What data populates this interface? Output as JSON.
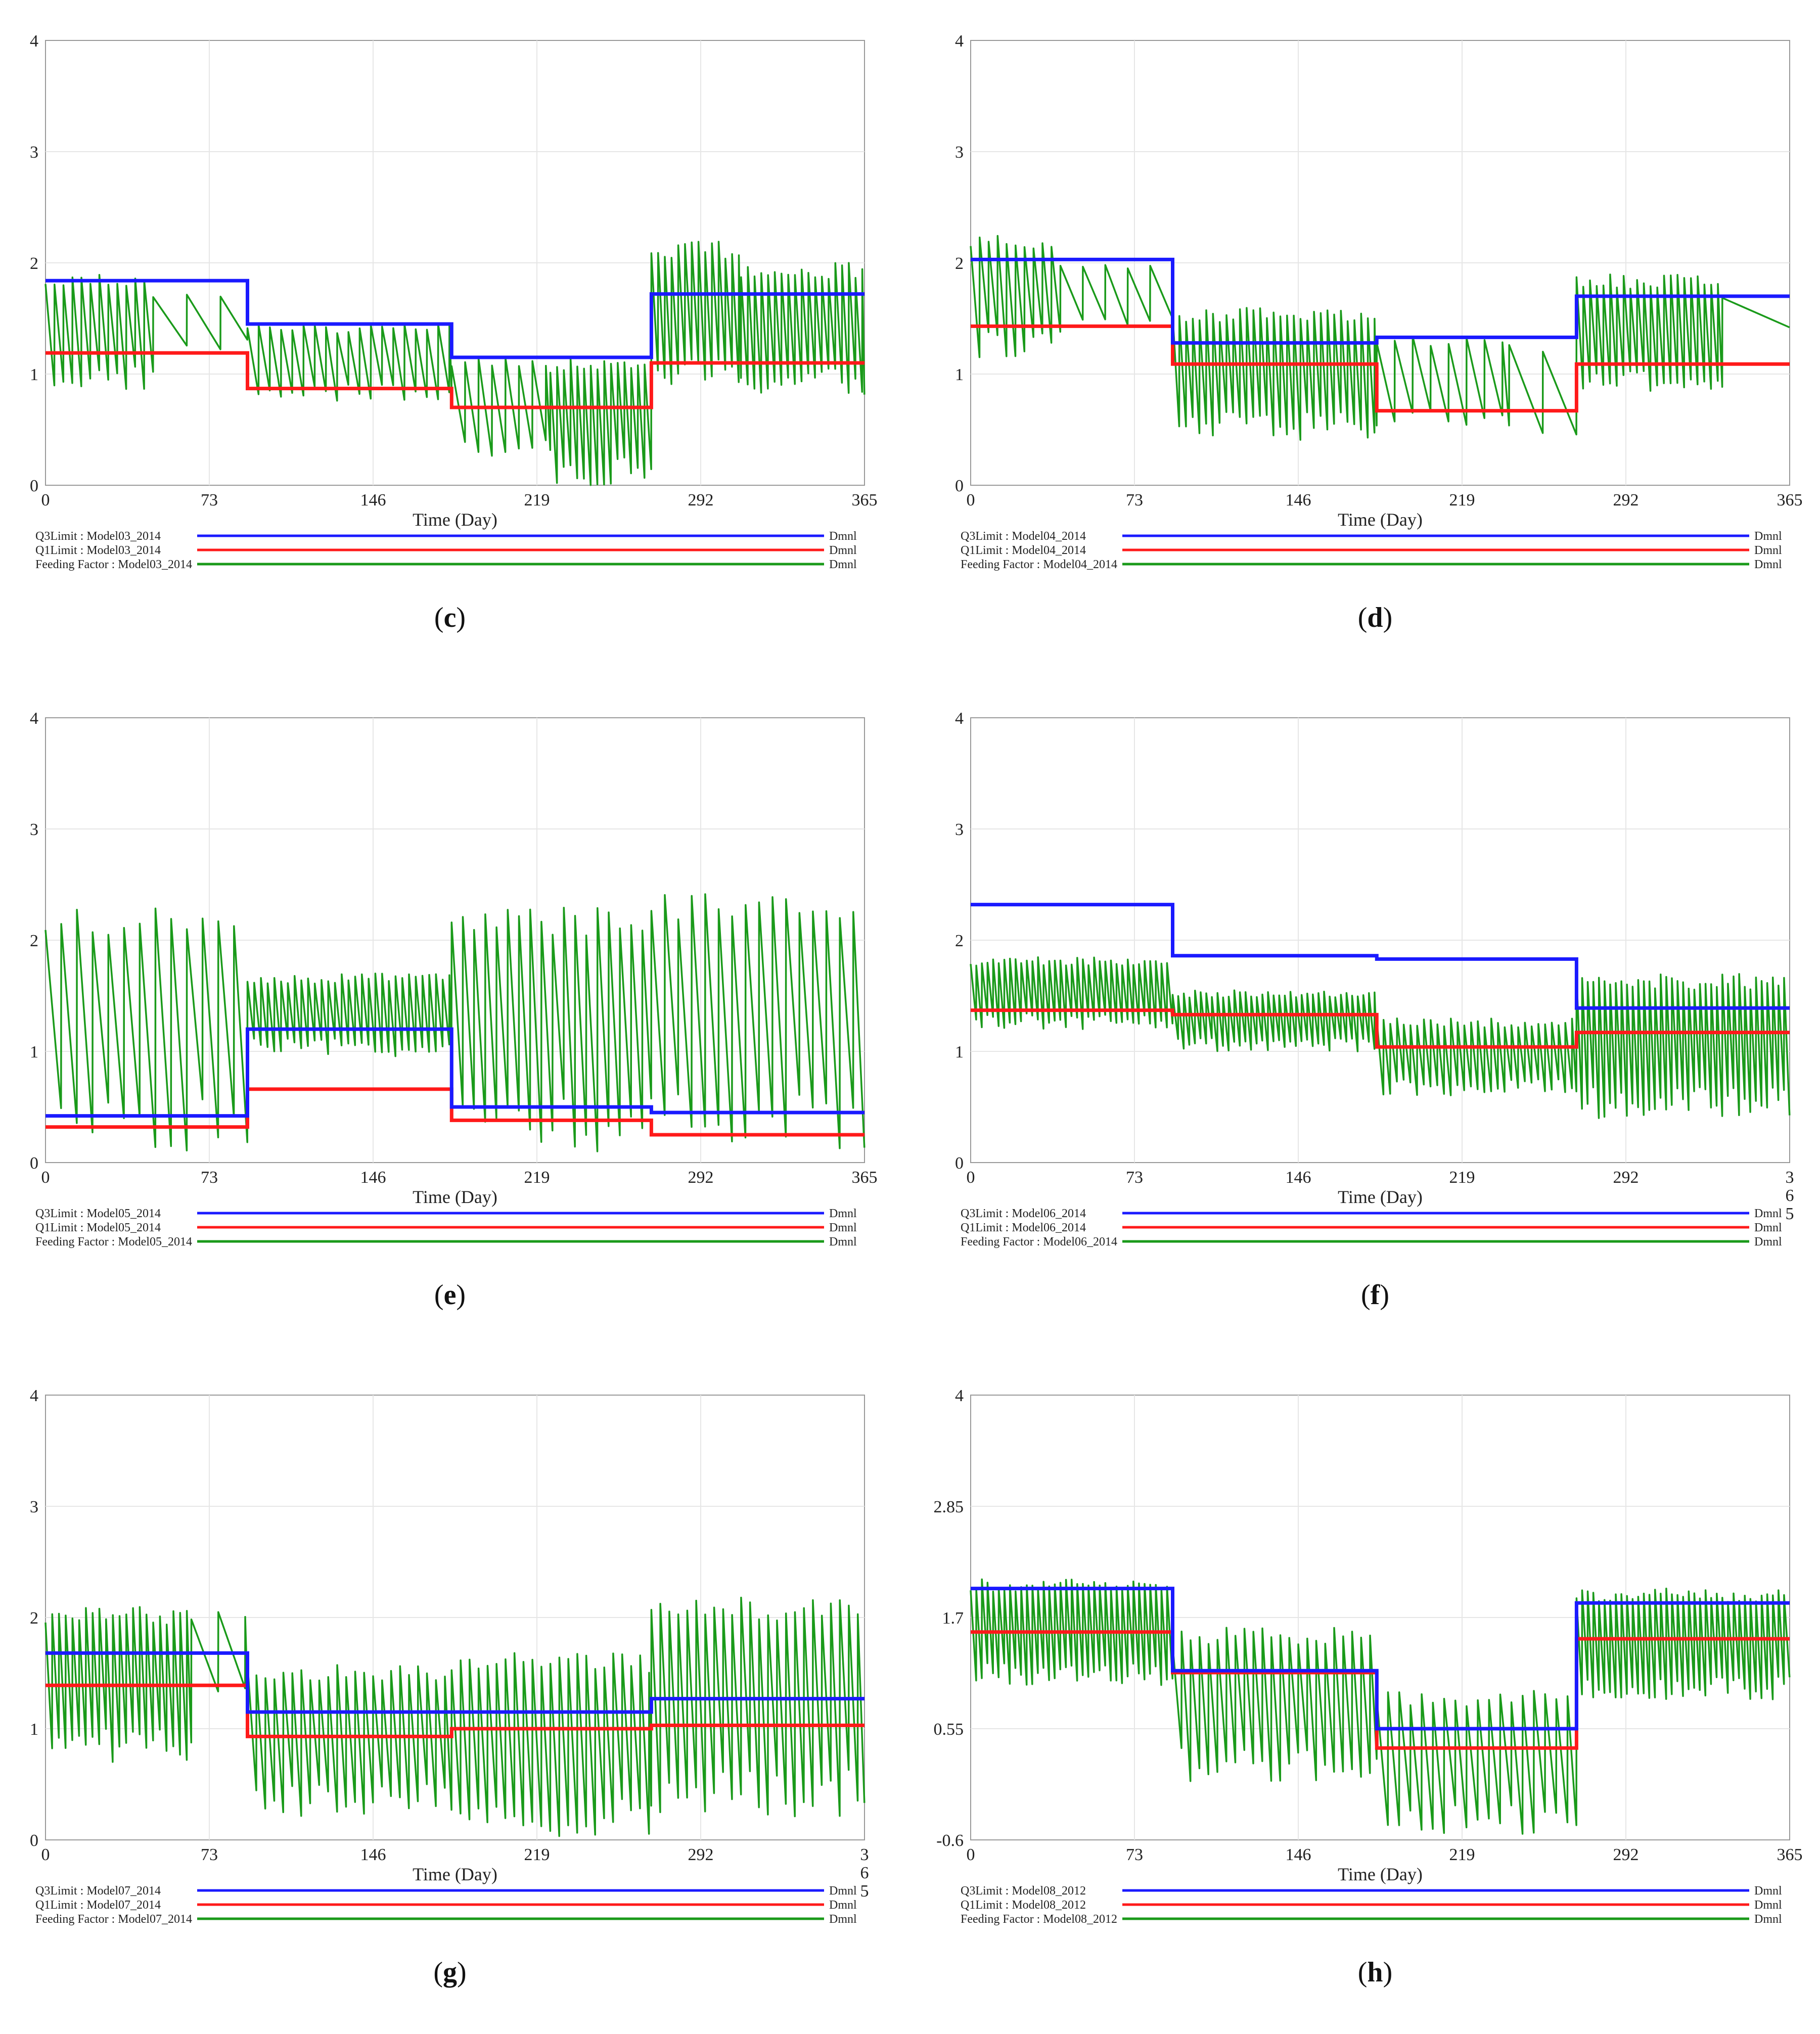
{
  "chart_data": [
    {
      "type": "line",
      "panel": "c",
      "caption_letter": "c",
      "xlabel": "Time (Day)",
      "xlim": [
        0,
        365
      ],
      "ylim": [
        0,
        4
      ],
      "x_ticks": [
        "0",
        "73",
        "146",
        "219",
        "292",
        "365"
      ],
      "y_ticks": [
        {
          "v": 0,
          "label": "0"
        },
        {
          "v": 1,
          "label": "1"
        },
        {
          "v": 2,
          "label": "2"
        },
        {
          "v": 3,
          "label": "3"
        },
        {
          "v": 4,
          "label": "4"
        }
      ],
      "legend": [
        {
          "label": "Q3Limit : Model03_2014",
          "unit": "Dmnl",
          "color": "#1a1aff"
        },
        {
          "label": "Q1Limit : Model03_2014",
          "unit": "Dmnl",
          "color": "#ff1a1a"
        },
        {
          "label": "Feeding Factor : Model03_2014",
          "unit": "Dmnl",
          "color": "#1a9a1a"
        }
      ],
      "series": [
        {
          "name": "Q3Limit",
          "type": "step",
          "breaks": [
            0,
            90,
            181,
            270,
            365
          ],
          "values": [
            1.84,
            1.45,
            1.15,
            1.72
          ]
        },
        {
          "name": "Q1Limit",
          "type": "step",
          "breaks": [
            0,
            90,
            181,
            270,
            365
          ],
          "values": [
            1.19,
            0.87,
            0.7,
            1.1
          ]
        },
        {
          "name": "Feeding Factor",
          "type": "oscillation",
          "segments": [
            {
              "start": 0,
              "end": 48,
              "period": 4,
              "min": 0.85,
              "max": 1.9
            },
            {
              "start": 48,
              "end": 90,
              "period": 15,
              "min": 1.2,
              "max": 1.75
            },
            {
              "start": 90,
              "end": 181,
              "period": 5,
              "min": 0.75,
              "max": 1.45
            },
            {
              "start": 181,
              "end": 225,
              "period": 6,
              "min": 0.2,
              "max": 1.15
            },
            {
              "start": 225,
              "end": 270,
              "period": 3,
              "min": 0.0,
              "max": 1.15
            },
            {
              "start": 270,
              "end": 310,
              "period": 3,
              "min": 0.85,
              "max": 2.2
            },
            {
              "start": 310,
              "end": 365,
              "period": 3,
              "min": 0.8,
              "max": 2.0
            }
          ]
        }
      ]
    },
    {
      "type": "line",
      "panel": "d",
      "caption_letter": "d",
      "xlabel": "Time (Day)",
      "xlim": [
        0,
        365
      ],
      "ylim": [
        0,
        4
      ],
      "x_ticks": [
        "0",
        "73",
        "146",
        "219",
        "292",
        "365"
      ],
      "y_ticks": [
        {
          "v": 0,
          "label": "0"
        },
        {
          "v": 1,
          "label": "1"
        },
        {
          "v": 2,
          "label": "2"
        },
        {
          "v": 3,
          "label": "3"
        },
        {
          "v": 4,
          "label": "4"
        }
      ],
      "legend": [
        {
          "label": "Q3Limit : Model04_2014",
          "unit": "Dmnl",
          "color": "#1a1aff"
        },
        {
          "label": "Q1Limit : Model04_2014",
          "unit": "Dmnl",
          "color": "#ff1a1a"
        },
        {
          "label": "Feeding Factor : Model04_2014",
          "unit": "Dmnl",
          "color": "#1a9a1a"
        }
      ],
      "series": [
        {
          "name": "Q3Limit",
          "type": "step",
          "breaks": [
            0,
            90,
            181,
            270,
            365
          ],
          "values": [
            2.03,
            1.28,
            1.33,
            1.7
          ]
        },
        {
          "name": "Q1Limit",
          "type": "step",
          "breaks": [
            0,
            90,
            181,
            270,
            365
          ],
          "values": [
            1.43,
            1.09,
            0.67,
            1.09
          ]
        },
        {
          "name": "Feeding Factor",
          "type": "oscillation",
          "segments": [
            {
              "start": 0,
              "end": 40,
              "period": 4,
              "min": 1.15,
              "max": 2.25
            },
            {
              "start": 40,
              "end": 90,
              "period": 10,
              "min": 1.4,
              "max": 2.0
            },
            {
              "start": 90,
              "end": 181,
              "period": 3,
              "min": 0.4,
              "max": 1.6
            },
            {
              "start": 181,
              "end": 240,
              "period": 8,
              "min": 0.5,
              "max": 1.35
            },
            {
              "start": 240,
              "end": 270,
              "period": 15,
              "min": 0.4,
              "max": 1.3
            },
            {
              "start": 270,
              "end": 335,
              "period": 3,
              "min": 0.8,
              "max": 1.9
            },
            {
              "start": 335,
              "end": 365,
              "period": 30,
              "min": 1.4,
              "max": 1.7
            }
          ]
        }
      ]
    },
    {
      "type": "line",
      "panel": "e",
      "caption_letter": "e",
      "xlabel": "Time (Day)",
      "xlim": [
        0,
        365
      ],
      "ylim": [
        0,
        4
      ],
      "x_ticks": [
        "0",
        "73",
        "146",
        "219",
        "292",
        "365"
      ],
      "y_ticks": [
        {
          "v": 0,
          "label": "0"
        },
        {
          "v": 1,
          "label": "1"
        },
        {
          "v": 2,
          "label": "2"
        },
        {
          "v": 3,
          "label": "3"
        },
        {
          "v": 4,
          "label": "4"
        }
      ],
      "legend": [
        {
          "label": "Q3Limit : Model05_2014",
          "unit": "Dmnl",
          "color": "#1a1aff"
        },
        {
          "label": "Q1Limit : Model05_2014",
          "unit": "Dmnl",
          "color": "#ff1a1a"
        },
        {
          "label": "Feeding Factor : Model05_2014",
          "unit": "Dmnl",
          "color": "#1a9a1a"
        }
      ],
      "series": [
        {
          "name": "Q3Limit",
          "type": "step",
          "breaks": [
            0,
            90,
            181,
            270,
            365
          ],
          "values": [
            0.42,
            1.2,
            0.5,
            0.45
          ]
        },
        {
          "name": "Q1Limit",
          "type": "step",
          "breaks": [
            0,
            90,
            181,
            270,
            365
          ],
          "values": [
            0.32,
            0.66,
            0.38,
            0.25
          ]
        },
        {
          "name": "Feeding Factor",
          "type": "oscillation",
          "segments": [
            {
              "start": 0,
              "end": 90,
              "period": 7,
              "min": 0.1,
              "max": 2.3
            },
            {
              "start": 90,
              "end": 181,
              "period": 3,
              "min": 0.95,
              "max": 1.7
            },
            {
              "start": 181,
              "end": 270,
              "period": 5,
              "min": 0.1,
              "max": 2.3
            },
            {
              "start": 270,
              "end": 365,
              "period": 6,
              "min": 0.1,
              "max": 2.45
            }
          ]
        }
      ]
    },
    {
      "type": "line",
      "panel": "f",
      "caption_letter": "f",
      "xlabel": "Time (Day)",
      "xlim": [
        0,
        365
      ],
      "ylim": [
        0,
        4
      ],
      "x_ticks": [
        "0",
        "73",
        "146",
        "219",
        "292",
        "3\n6\n5"
      ],
      "y_ticks": [
        {
          "v": 0,
          "label": "0"
        },
        {
          "v": 1,
          "label": "1"
        },
        {
          "v": 2,
          "label": "2"
        },
        {
          "v": 3,
          "label": "3"
        },
        {
          "v": 4,
          "label": "4"
        }
      ],
      "legend": [
        {
          "label": "Q3Limit : Model06_2014",
          "unit": "Dmnl",
          "color": "#1a1aff"
        },
        {
          "label": "Q1Limit : Model06_2014",
          "unit": "Dmnl",
          "color": "#ff1a1a"
        },
        {
          "label": "Feeding Factor : Model06_2014",
          "unit": "Dmnl",
          "color": "#1a9a1a"
        }
      ],
      "series": [
        {
          "name": "Q3Limit",
          "type": "step",
          "breaks": [
            0,
            90,
            181,
            270,
            365
          ],
          "values": [
            2.32,
            1.86,
            1.83,
            1.39
          ]
        },
        {
          "name": "Q1Limit",
          "type": "step",
          "breaks": [
            0,
            90,
            181,
            270,
            365
          ],
          "values": [
            1.37,
            1.33,
            1.04,
            1.17
          ]
        },
        {
          "name": "Feeding Factor",
          "type": "oscillation",
          "segments": [
            {
              "start": 0,
              "end": 90,
              "period": 2.5,
              "min": 1.2,
              "max": 1.85
            },
            {
              "start": 90,
              "end": 181,
              "period": 2.5,
              "min": 1.0,
              "max": 1.55
            },
            {
              "start": 181,
              "end": 270,
              "period": 3,
              "min": 0.6,
              "max": 1.3
            },
            {
              "start": 270,
              "end": 365,
              "period": 2.5,
              "min": 0.4,
              "max": 1.7
            }
          ]
        }
      ]
    },
    {
      "type": "line",
      "panel": "g",
      "caption_letter": "g",
      "xlabel": "Time (Day)",
      "xlim": [
        0,
        365
      ],
      "ylim": [
        0,
        4
      ],
      "x_ticks": [
        "0",
        "73",
        "146",
        "219",
        "292",
        "3\n6\n5"
      ],
      "y_ticks": [
        {
          "v": 0,
          "label": "0"
        },
        {
          "v": 1,
          "label": "1"
        },
        {
          "v": 2,
          "label": "2"
        },
        {
          "v": 3,
          "label": "3"
        },
        {
          "v": 4,
          "label": "4"
        }
      ],
      "legend": [
        {
          "label": "Q3Limit : Model07_2014",
          "unit": "Dmnl",
          "color": "#1a1aff"
        },
        {
          "label": "Q1Limit : Model07_2014",
          "unit": "Dmnl",
          "color": "#ff1a1a"
        },
        {
          "label": "Feeding Factor : Model07_2014",
          "unit": "Dmnl",
          "color": "#1a9a1a"
        }
      ],
      "series": [
        {
          "name": "Q3Limit",
          "type": "step",
          "breaks": [
            0,
            90,
            181,
            270,
            365
          ],
          "values": [
            1.68,
            1.15,
            1.15,
            1.27
          ]
        },
        {
          "name": "Q1Limit",
          "type": "step",
          "breaks": [
            0,
            90,
            181,
            270,
            365
          ],
          "values": [
            1.39,
            0.93,
            1.0,
            1.03
          ]
        },
        {
          "name": "Feeding Factor",
          "type": "oscillation",
          "segments": [
            {
              "start": 0,
              "end": 65,
              "period": 3,
              "min": 0.7,
              "max": 2.1
            },
            {
              "start": 65,
              "end": 90,
              "period": 12,
              "min": 1.2,
              "max": 2.05
            },
            {
              "start": 90,
              "end": 181,
              "period": 4,
              "min": 0.2,
              "max": 1.6
            },
            {
              "start": 181,
              "end": 270,
              "period": 4,
              "min": 0.0,
              "max": 1.7
            },
            {
              "start": 270,
              "end": 365,
              "period": 4,
              "min": 0.2,
              "max": 2.2
            }
          ]
        }
      ]
    },
    {
      "type": "line",
      "panel": "h",
      "caption_letter": "h",
      "xlabel": "Time (Day)",
      "xlim": [
        0,
        365
      ],
      "ylim": [
        -0.6,
        4
      ],
      "x_ticks": [
        "0",
        "73",
        "146",
        "219",
        "292",
        "365"
      ],
      "y_ticks": [
        {
          "v": -0.6,
          "label": "-0.6"
        },
        {
          "v": 0.55,
          "label": "0.55"
        },
        {
          "v": 1.7,
          "label": "1.7"
        },
        {
          "v": 2.85,
          "label": "2.85"
        },
        {
          "v": 4,
          "label": "4"
        }
      ],
      "legend": [
        {
          "label": "Q3Limit : Model08_2012",
          "unit": "Dmnl",
          "color": "#1a1aff"
        },
        {
          "label": "Q1Limit : Model08_2012",
          "unit": "Dmnl",
          "color": "#ff1a1a"
        },
        {
          "label": "Feeding Factor : Model08_2012",
          "unit": "Dmnl",
          "color": "#1a9a1a"
        }
      ],
      "series": [
        {
          "name": "Q3Limit",
          "type": "step",
          "breaks": [
            0,
            90,
            181,
            270,
            365
          ],
          "values": [
            2.0,
            1.15,
            0.55,
            1.85
          ]
        },
        {
          "name": "Q1Limit",
          "type": "step",
          "breaks": [
            0,
            90,
            181,
            270,
            365
          ],
          "values": [
            1.55,
            1.13,
            0.35,
            1.48
          ]
        },
        {
          "name": "Feeding Factor",
          "type": "oscillation",
          "segments": [
            {
              "start": 0,
              "end": 90,
              "period": 2.5,
              "min": 1.0,
              "max": 2.1
            },
            {
              "start": 90,
              "end": 181,
              "period": 4,
              "min": 0.0,
              "max": 1.6
            },
            {
              "start": 181,
              "end": 270,
              "period": 5,
              "min": -0.55,
              "max": 0.95
            },
            {
              "start": 270,
              "end": 365,
              "period": 2.5,
              "min": 0.85,
              "max": 2.0
            }
          ]
        }
      ]
    }
  ]
}
